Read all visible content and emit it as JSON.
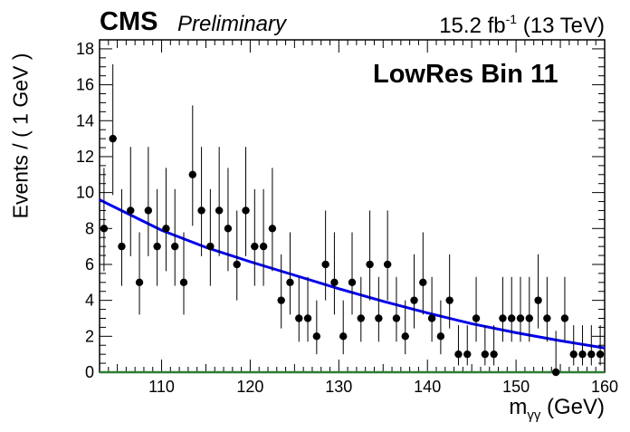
{
  "header": {
    "experiment": "CMS",
    "status": "Preliminary",
    "lumi_value": "15.2 fb",
    "lumi_exp": "-1",
    "energy": " (13 TeV)"
  },
  "chart_data": {
    "type": "scatter",
    "annotation": "LowRes Bin 11",
    "xlabel_main": "m",
    "xlabel_sub": "γγ",
    "xlabel_unit": " (GeV)",
    "ylabel": "Events / ( 1 GeV )",
    "xlim": [
      103,
      160
    ],
    "ylim": [
      0,
      18.5
    ],
    "x_ticks": [
      110,
      120,
      130,
      140,
      150,
      160
    ],
    "y_ticks": [
      0,
      2,
      4,
      6,
      8,
      10,
      12,
      14,
      16,
      18
    ],
    "colors": {
      "points": "#000000",
      "fit": "#0000ee",
      "background": "#2e7d32"
    },
    "series": [
      {
        "name": "",
        "kind": "data-points-with-errors",
        "x": [
          103.5,
          104.5,
          105.5,
          106.5,
          107.5,
          108.5,
          109.5,
          110.5,
          111.5,
          112.5,
          113.5,
          114.5,
          115.5,
          116.5,
          117.5,
          118.5,
          119.5,
          120.5,
          121.5,
          122.5,
          123.5,
          124.5,
          125.5,
          126.5,
          127.5,
          128.5,
          129.5,
          130.5,
          131.5,
          132.5,
          133.5,
          134.5,
          135.5,
          136.5,
          137.5,
          138.5,
          139.5,
          140.5,
          141.5,
          142.5,
          143.5,
          144.5,
          145.5,
          146.5,
          147.5,
          148.5,
          149.5,
          150.5,
          151.5,
          152.5,
          153.5,
          154.5,
          155.5,
          156.5,
          157.5,
          158.5,
          159.5
        ],
        "y": [
          8,
          13,
          7,
          9,
          5,
          9,
          7,
          8,
          7,
          5,
          11,
          9,
          7,
          9,
          8,
          6,
          9,
          7,
          7,
          8,
          4,
          5,
          3,
          3,
          2,
          6,
          5,
          2,
          5,
          3,
          6,
          3,
          6,
          3,
          2,
          4,
          5,
          3,
          2,
          4,
          1,
          1,
          3,
          1,
          1,
          3,
          3,
          3,
          3,
          4,
          3,
          0,
          3,
          1,
          1,
          1,
          1
        ]
      },
      {
        "name": "",
        "kind": "fit-curve",
        "x": [
          103,
          110,
          115,
          120,
          125,
          130,
          135,
          140,
          145,
          150,
          155,
          160
        ],
        "y": [
          9.6,
          7.9,
          6.95,
          6.15,
          5.4,
          4.65,
          3.95,
          3.3,
          2.7,
          2.2,
          1.75,
          1.35
        ]
      },
      {
        "name": "",
        "kind": "background-line",
        "x": [
          103,
          160
        ],
        "y": [
          0,
          0
        ]
      }
    ]
  }
}
